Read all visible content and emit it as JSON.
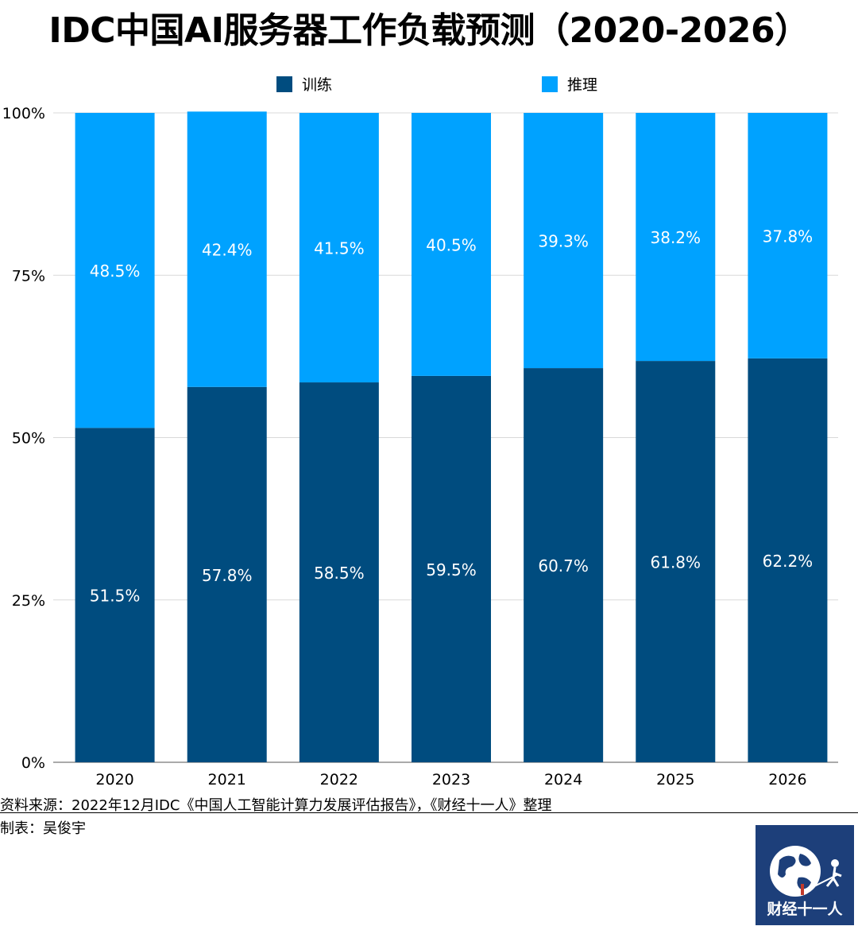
{
  "chart_data": {
    "type": "bar",
    "stacked": true,
    "title": "IDC中国AI服务器工作负载预测（2020-2026）",
    "categories": [
      "2020",
      "2021",
      "2022",
      "2023",
      "2024",
      "2025",
      "2026"
    ],
    "series": [
      {
        "name": "训练",
        "color": "#004c7f",
        "values": [
          51.5,
          57.8,
          58.5,
          59.5,
          60.7,
          61.8,
          62.2
        ]
      },
      {
        "name": "推理",
        "color": "#00a2ff",
        "values": [
          48.5,
          42.4,
          41.5,
          40.5,
          39.3,
          38.2,
          37.8
        ]
      }
    ],
    "data_labels": [
      [
        "51.5%",
        "57.8%",
        "58.5%",
        "59.5%",
        "60.7%",
        "61.8%",
        "62.2%"
      ],
      [
        "48.5%",
        "42.4%",
        "41.5%",
        "40.5%",
        "39.3%",
        "38.2%",
        "37.8%"
      ]
    ],
    "ylim": [
      0,
      100
    ],
    "yticks": [
      0,
      25,
      50,
      75,
      100
    ],
    "ytick_labels": [
      "0%",
      "25%",
      "50%",
      "75%",
      "100%"
    ],
    "grid": true,
    "legend_position": "top",
    "xlabel": "",
    "ylabel": ""
  },
  "source": "资料来源：2022年12月IDC《中国人工智能计算力发展评估报告》，《财经十一人》整理",
  "credit": "制表：吴俊宇",
  "logo_text": "财经十一人"
}
